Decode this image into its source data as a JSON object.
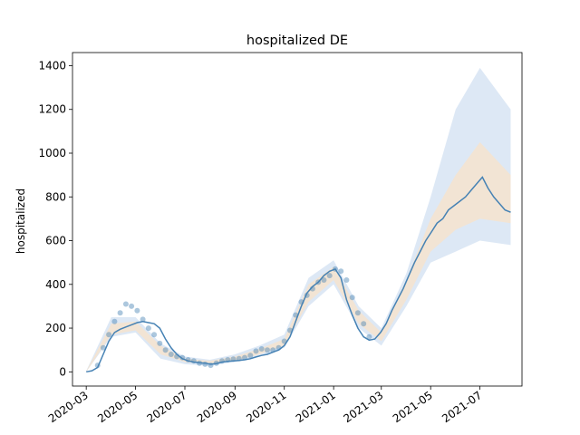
{
  "chart_data": {
    "type": "line",
    "title": "hospitalized DE",
    "xlabel": "",
    "ylabel": "hospitalized",
    "x_ticks": [
      "2020-03",
      "2020-05",
      "2020-07",
      "2020-09",
      "2020-11",
      "2021-01",
      "2021-03",
      "2021-05",
      "2021-07"
    ],
    "y_ticks": [
      0,
      200,
      400,
      600,
      800,
      1000,
      1200,
      1400
    ],
    "xlim": [
      "2020-02-13",
      "2021-08-22"
    ],
    "ylim": [
      -65,
      1460
    ],
    "grid": false,
    "colors": {
      "model_line": "#4682b4",
      "observed_points": "#4682b4",
      "observed_band": "#c6d9ee",
      "forecast_band": "#fbe3c6"
    },
    "model_line": {
      "x": [
        "2020-03-01",
        "2020-03-08",
        "2020-03-15",
        "2020-03-22",
        "2020-03-29",
        "2020-04-05",
        "2020-04-12",
        "2020-04-19",
        "2020-04-26",
        "2020-05-03",
        "2020-05-10",
        "2020-05-17",
        "2020-05-24",
        "2020-05-31",
        "2020-06-07",
        "2020-06-14",
        "2020-06-21",
        "2020-06-28",
        "2020-07-05",
        "2020-07-12",
        "2020-07-19",
        "2020-07-26",
        "2020-08-02",
        "2020-08-09",
        "2020-08-16",
        "2020-08-23",
        "2020-08-30",
        "2020-09-06",
        "2020-09-13",
        "2020-09-20",
        "2020-09-27",
        "2020-10-04",
        "2020-10-11",
        "2020-10-18",
        "2020-10-25",
        "2020-11-01",
        "2020-11-08",
        "2020-11-15",
        "2020-11-22",
        "2020-11-29",
        "2020-12-06",
        "2020-12-13",
        "2020-12-20",
        "2020-12-27",
        "2021-01-03",
        "2021-01-10",
        "2021-01-17",
        "2021-01-24",
        "2021-01-31",
        "2021-02-07",
        "2021-02-14",
        "2021-02-21",
        "2021-02-28",
        "2021-03-07",
        "2021-03-14",
        "2021-03-21",
        "2021-03-28",
        "2021-04-04",
        "2021-04-11",
        "2021-04-18",
        "2021-04-25",
        "2021-05-02",
        "2021-05-09",
        "2021-05-16",
        "2021-05-23",
        "2021-05-30",
        "2021-06-06",
        "2021-06-13",
        "2021-06-20",
        "2021-06-27",
        "2021-07-04",
        "2021-07-11",
        "2021-07-18",
        "2021-07-25",
        "2021-08-01",
        "2021-08-08"
      ],
      "y": [
        0,
        5,
        20,
        80,
        140,
        180,
        195,
        205,
        215,
        225,
        230,
        225,
        220,
        200,
        150,
        110,
        80,
        60,
        50,
        45,
        42,
        40,
        35,
        38,
        45,
        48,
        50,
        52,
        55,
        60,
        68,
        75,
        80,
        90,
        100,
        120,
        160,
        230,
        300,
        360,
        390,
        410,
        440,
        460,
        470,
        430,
        330,
        260,
        200,
        160,
        145,
        150,
        180,
        220,
        280,
        330,
        380,
        440,
        500,
        550,
        600,
        640,
        680,
        700,
        740,
        760,
        780,
        800,
        830,
        860,
        890,
        840,
        800,
        770,
        740,
        730
      ]
    },
    "observed_points": {
      "x": [
        "2020-03-15",
        "2020-03-22",
        "2020-03-29",
        "2020-04-05",
        "2020-04-12",
        "2020-04-19",
        "2020-04-26",
        "2020-05-03",
        "2020-05-10",
        "2020-05-17",
        "2020-05-24",
        "2020-05-31",
        "2020-06-07",
        "2020-06-14",
        "2020-06-21",
        "2020-06-28",
        "2020-07-05",
        "2020-07-12",
        "2020-07-19",
        "2020-07-26",
        "2020-08-02",
        "2020-08-09",
        "2020-08-16",
        "2020-08-23",
        "2020-08-30",
        "2020-09-06",
        "2020-09-13",
        "2020-09-20",
        "2020-09-27",
        "2020-10-04",
        "2020-10-11",
        "2020-10-18",
        "2020-10-25",
        "2020-11-01",
        "2020-11-08",
        "2020-11-15",
        "2020-11-22",
        "2020-11-29",
        "2020-12-06",
        "2020-12-13",
        "2020-12-20",
        "2020-12-27",
        "2021-01-03",
        "2021-01-10",
        "2021-01-17",
        "2021-01-24",
        "2021-01-31",
        "2021-02-07",
        "2021-02-14"
      ],
      "y": [
        30,
        110,
        170,
        230,
        270,
        310,
        300,
        280,
        240,
        200,
        170,
        130,
        100,
        80,
        70,
        65,
        55,
        50,
        40,
        35,
        30,
        40,
        50,
        55,
        58,
        60,
        65,
        75,
        95,
        105,
        100,
        100,
        110,
        140,
        190,
        260,
        320,
        350,
        380,
        410,
        420,
        440,
        470,
        460,
        420,
        340,
        270,
        220,
        160
      ]
    },
    "observed_band": {
      "x": [
        "2020-03-01",
        "2020-04-01",
        "2020-05-01",
        "2020-06-01",
        "2020-07-01",
        "2020-08-01",
        "2020-09-01",
        "2020-10-01",
        "2020-11-01",
        "2020-12-01",
        "2021-01-01",
        "2021-02-01",
        "2021-03-01",
        "2021-04-01",
        "2021-05-01",
        "2021-06-01",
        "2021-07-01",
        "2021-08-08"
      ],
      "lower": [
        0,
        160,
        180,
        60,
        35,
        28,
        45,
        70,
        110,
        300,
        400,
        200,
        120,
        300,
        500,
        550,
        600,
        580
      ],
      "upper": [
        5,
        250,
        250,
        130,
        70,
        55,
        80,
        120,
        170,
        430,
        510,
        300,
        200,
        450,
        800,
        1200,
        1390,
        1200
      ]
    },
    "forecast_band": {
      "x": [
        "2020-03-01",
        "2020-04-01",
        "2020-05-01",
        "2020-06-01",
        "2020-07-01",
        "2020-08-01",
        "2020-09-01",
        "2020-10-01",
        "2020-11-01",
        "2020-12-01",
        "2021-01-01",
        "2021-02-01",
        "2021-03-01",
        "2021-04-01",
        "2021-05-01",
        "2021-06-01",
        "2021-07-01",
        "2021-08-08"
      ],
      "lower": [
        0,
        170,
        190,
        80,
        45,
        35,
        50,
        80,
        120,
        320,
        420,
        220,
        140,
        330,
        550,
        650,
        700,
        680
      ],
      "upper": [
        3,
        220,
        230,
        120,
        60,
        50,
        70,
        105,
        150,
        400,
        480,
        280,
        180,
        420,
        700,
        900,
        1050,
        900
      ]
    }
  }
}
